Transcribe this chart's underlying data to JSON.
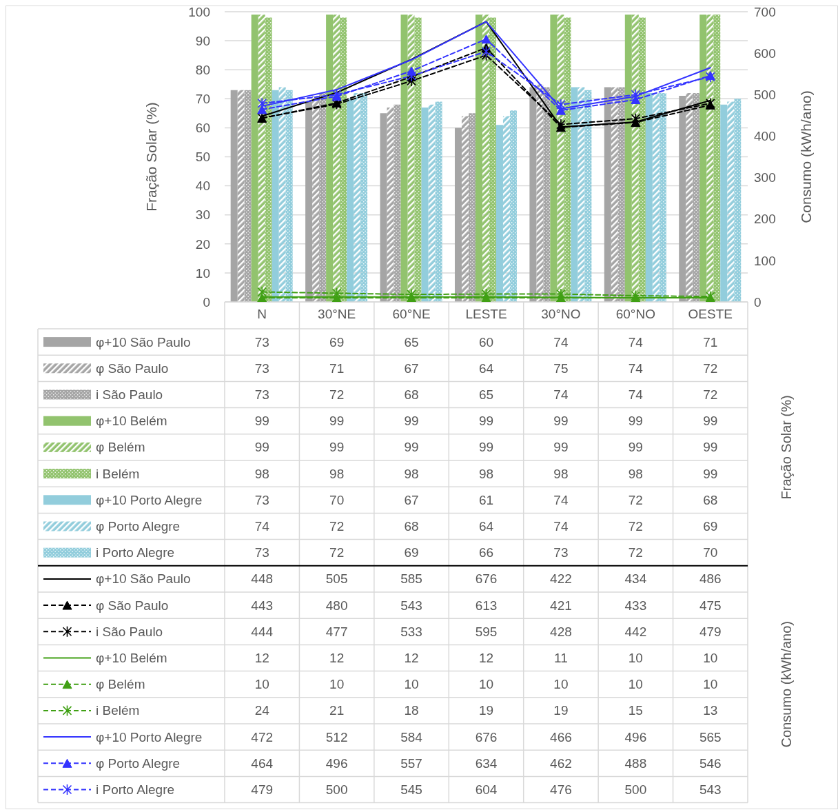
{
  "chart_data": {
    "type": "bar",
    "ylabel": "Fração Solar (%)",
    "y2label": "Consumo (kWh/ano)",
    "categories": [
      "N",
      "30°NE",
      "60°NE",
      "LESTE",
      "30°NO",
      "60°NO",
      "OESTE"
    ],
    "series": [
      {
        "name": "φ+10 São Paulo",
        "color": "#a5a5a5",
        "values": [
          73,
          69,
          65,
          60,
          74,
          74,
          71
        ]
      },
      {
        "name": "φ São Paulo",
        "color": "#a5a5a5",
        "values": [
          73,
          71,
          67,
          64,
          75,
          74,
          72
        ]
      },
      {
        "name": "i São Paulo",
        "color": "#a5a5a5",
        "values": [
          73,
          72,
          68,
          65,
          74,
          74,
          72
        ]
      },
      {
        "name": "φ+10 Belém",
        "color": "#92c36e",
        "values": [
          99,
          99,
          99,
          99,
          99,
          99,
          99
        ]
      },
      {
        "name": "φ Belém",
        "color": "#92c36e",
        "values": [
          99,
          99,
          99,
          99,
          99,
          99,
          99
        ]
      },
      {
        "name": "i Belém",
        "color": "#92c36e",
        "values": [
          98,
          98,
          98,
          98,
          98,
          98,
          99
        ]
      },
      {
        "name": "φ+10 Porto Alegre",
        "color": "#92cddc",
        "values": [
          73,
          70,
          67,
          61,
          74,
          72,
          68
        ]
      },
      {
        "name": "φ Porto Alegre",
        "color": "#92cddc",
        "values": [
          74,
          72,
          68,
          64,
          74,
          72,
          69
        ]
      },
      {
        "name": "i Porto Alegre",
        "color": "#92cddc",
        "values": [
          73,
          72,
          69,
          66,
          73,
          72,
          70
        ]
      },
      {
        "name": "φ+10 São Paulo",
        "type": "line",
        "axis": "y2",
        "color": "#000000",
        "line_style": "solid",
        "values": [
          448,
          505,
          585,
          676,
          422,
          434,
          486
        ]
      },
      {
        "name": "φ São Paulo",
        "type": "line",
        "axis": "y2",
        "color": "#000000",
        "line_style": "dashed",
        "marker": "triangle",
        "values": [
          443,
          480,
          543,
          613,
          421,
          433,
          475
        ]
      },
      {
        "name": "i São Paulo",
        "type": "line",
        "axis": "y2",
        "color": "#000000",
        "line_style": "dashed",
        "marker": "cross",
        "values": [
          444,
          477,
          533,
          595,
          428,
          442,
          479
        ]
      },
      {
        "name": "φ+10 Belém",
        "type": "line",
        "axis": "y2",
        "color": "#40a014",
        "line_style": "solid",
        "values": [
          12,
          12,
          12,
          12,
          11,
          10,
          10
        ]
      },
      {
        "name": "φ Belém",
        "type": "line",
        "axis": "y2",
        "color": "#40a014",
        "line_style": "dashed",
        "marker": "triangle",
        "values": [
          10,
          10,
          10,
          10,
          10,
          10,
          10
        ]
      },
      {
        "name": "i Belém",
        "type": "line",
        "axis": "y2",
        "color": "#40a014",
        "line_style": "dashed",
        "marker": "cross",
        "values": [
          24,
          21,
          18,
          19,
          19,
          15,
          13
        ]
      },
      {
        "name": "φ+10 Porto Alegre",
        "type": "line",
        "axis": "y2",
        "color": "#3333ff",
        "line_style": "solid",
        "values": [
          472,
          512,
          584,
          676,
          466,
          496,
          565
        ]
      },
      {
        "name": "φ Porto Alegre",
        "type": "line",
        "axis": "y2",
        "color": "#3333ff",
        "line_style": "dashed",
        "marker": "triangle",
        "values": [
          464,
          496,
          557,
          634,
          462,
          488,
          546
        ]
      },
      {
        "name": "i Porto Alegre",
        "type": "line",
        "axis": "y2",
        "color": "#3333ff",
        "line_style": "dashed",
        "marker": "cross",
        "values": [
          479,
          500,
          545,
          604,
          476,
          500,
          543
        ]
      }
    ],
    "ylim": [
      0,
      100
    ],
    "yticks": [
      0,
      10,
      20,
      30,
      40,
      50,
      60,
      70,
      80,
      90,
      100
    ],
    "y2lim": [
      0,
      700
    ],
    "y2ticks": [
      0,
      100,
      200,
      300,
      400,
      500,
      600,
      700
    ],
    "grid": "y",
    "legend": "bottom",
    "data_labels": true
  }
}
